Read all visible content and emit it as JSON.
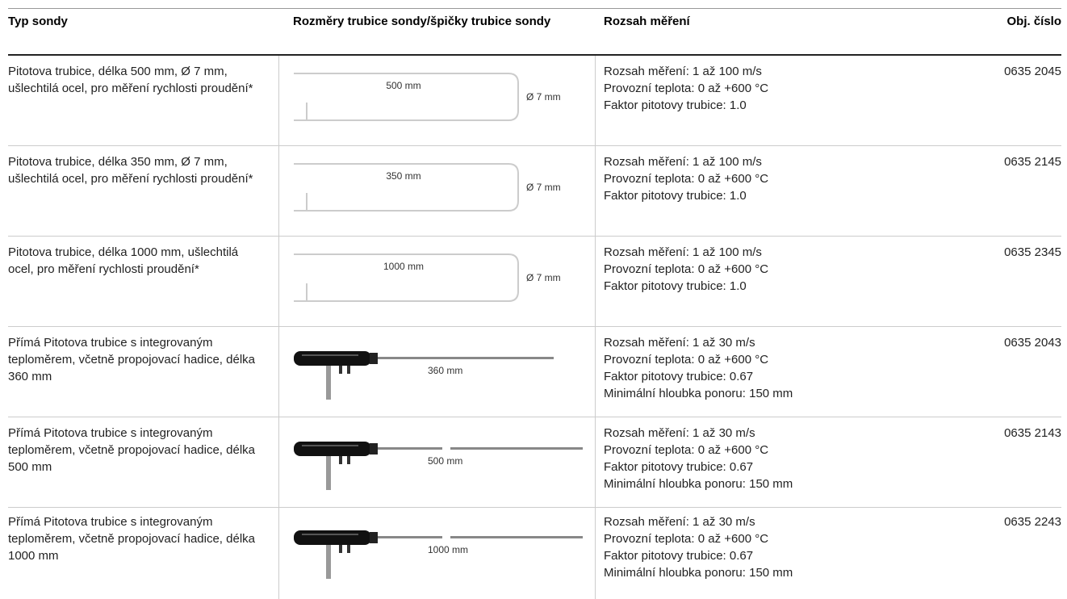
{
  "table": {
    "header": [
      "Typ sondy",
      "Rozměry trubice sondy/špičky trubice sondy",
      "Rozsah měření",
      "Obj. číslo"
    ],
    "rows": [
      {
        "type": "Pitotova trubice, délka 500 mm, Ø 7 mm, ušlechtilá ocel, pro měření rychlosti proudění*",
        "length": "500 mm",
        "diameter": "Ø 7 mm",
        "range": [
          "Rozsah měření: 1 až 100 m/s",
          "Provozní teplota: 0 až +600 °C",
          "Faktor pitotovy trubice: 1.0"
        ],
        "order": "0635 2045"
      },
      {
        "type": "Pitotova trubice, délka 350 mm, Ø 7 mm, ušlechtilá ocel, pro měření rychlosti proudění*",
        "length": "350 mm",
        "diameter": "Ø 7 mm",
        "range": [
          "Rozsah měření: 1 až 100 m/s",
          "Provozní teplota: 0 až +600 °C",
          "Faktor pitotovy trubice: 1.0"
        ],
        "order": "0635 2145"
      },
      {
        "type": "Pitotova trubice, délka 1000 mm, ušlechtilá ocel, pro měření rychlosti proudění*",
        "length": "1000 mm",
        "diameter": "Ø 7 mm",
        "range": [
          "Rozsah měření: 1 až 100 m/s",
          "Provozní teplota: 0 až +600 °C",
          "Faktor pitotovy trubice: 1.0"
        ],
        "order": "0635 2345"
      },
      {
        "type": "Přímá Pitotova trubice s integrovaným teploměrem, včetně propojovací hadice, délka 360 mm",
        "length": "360 mm",
        "range": [
          "Rozsah měření: 1 až 30 m/s",
          "Provozní teplota: 0 až +600 °C",
          "Faktor pitotovy trubice: 0.67",
          "Minimální hloubka ponoru: 150 mm"
        ],
        "order": "0635 2043"
      },
      {
        "type": "Přímá Pitotova trubice s integrovaným teploměrem, včetně propojovací hadice, délka 500 mm",
        "length": "500 mm",
        "range": [
          "Rozsah měření: 1 až 30 m/s",
          "Provozní teplota: 0 až +600 °C",
          "Faktor pitotovy trubice: 0.67",
          "Minimální hloubka ponoru: 150 mm"
        ],
        "order": "0635 2143"
      },
      {
        "type": "Přímá Pitotova trubice s integrovaným teploměrem, včetně propojovací hadice, délka 1000 mm",
        "length": "1000 mm",
        "range": [
          "Rozsah měření: 1 až 30 m/s",
          "Provozní teplota: 0 až +600 °C",
          "Faktor pitotovy trubice: 0.67",
          "Minimální hloubka ponoru: 150 mm"
        ],
        "order": "0635 2243"
      }
    ]
  }
}
